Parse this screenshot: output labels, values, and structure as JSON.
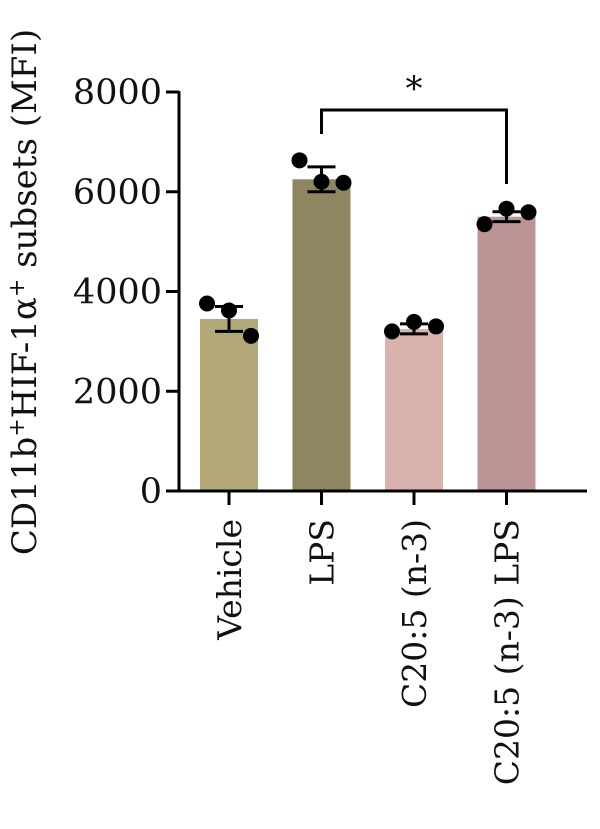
{
  "chart_data": {
    "type": "bar",
    "ylabel_parts": [
      {
        "text": "CD11b",
        "sup": false
      },
      {
        "text": "+",
        "sup": true
      },
      {
        "text": "HIF-1α",
        "sup": false
      },
      {
        "text": "+",
        "sup": true
      },
      {
        "text": " subsets (MFI)",
        "sup": false
      }
    ],
    "categories": [
      "Vehicle",
      "LPS",
      "C20:5 (n-3)",
      "C20:5 (n-3) LPS"
    ],
    "values": [
      3450,
      6250,
      3250,
      5500
    ],
    "error": [
      250,
      250,
      100,
      100
    ],
    "points": [
      [
        3760,
        3620,
        3110
      ],
      [
        6630,
        6200,
        6180
      ],
      [
        3200,
        3390,
        3300
      ],
      [
        5350,
        5660,
        5590
      ]
    ],
    "bar_colors": [
      "#b3a878",
      "#8d8660",
      "#d9b1ad",
      "#bc9495"
    ],
    "ylim": [
      0,
      8000
    ],
    "yticks": [
      0,
      2000,
      4000,
      6000,
      8000
    ],
    "significance": [
      {
        "from": 1,
        "to": 3,
        "label": "*"
      }
    ],
    "grid": false
  }
}
